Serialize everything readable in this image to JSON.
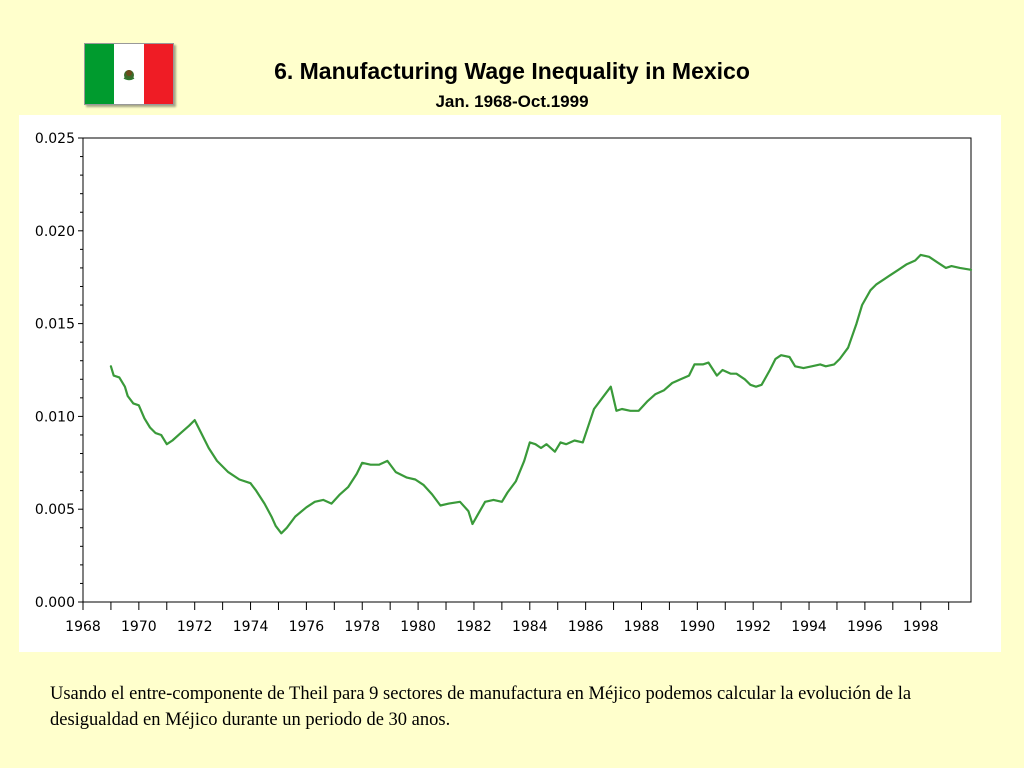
{
  "flag": {
    "name": "Mexico",
    "colors": [
      "#009b2e",
      "#ffffff",
      "#ef1c25"
    ]
  },
  "title": "6. Manufacturing Wage Inequality in Mexico",
  "subtitle": "Jan. 1968-Oct.1999",
  "caption": "Usando el entre-componente de Theil para 9 sectores de manufactura en Méjico podemos calcular la evolución de la desigualdad en Méjico durante un periodo de 30 anos.",
  "chart_data": {
    "type": "line",
    "title": "6. Manufacturing Wage Inequality in Mexico",
    "subtitle": "Jan. 1968-Oct.1999",
    "xlabel": "",
    "ylabel": "",
    "xlim": [
      1968,
      1999.8
    ],
    "ylim": [
      0,
      0.025
    ],
    "grid": false,
    "legend": "none",
    "line_color": "#3a9a3a",
    "y_ticks": [
      "0.000",
      "0.005",
      "0.010",
      "0.015",
      "0.020",
      "0.025"
    ],
    "x_ticks": [
      "1968",
      "1970",
      "1972",
      "1974",
      "1976",
      "1978",
      "1980",
      "1982",
      "1984",
      "1986",
      "1988",
      "1990",
      "1992",
      "1994",
      "1996",
      "1998"
    ],
    "series": [
      {
        "x": [
          1969.0,
          1969.1,
          1969.3,
          1969.5,
          1969.6,
          1969.8,
          1970.0,
          1970.2,
          1970.4,
          1970.6,
          1970.8,
          1971.0,
          1971.2,
          1971.5,
          1971.8,
          1972.0,
          1972.2,
          1972.5,
          1972.8,
          1973.2,
          1973.6,
          1974.0,
          1974.2,
          1974.5,
          1974.75,
          1974.9,
          1975.1,
          1975.3,
          1975.6,
          1976.0,
          1976.3,
          1976.6,
          1976.9,
          1977.2,
          1977.5,
          1977.8,
          1978.0,
          1978.3,
          1978.6,
          1978.9,
          1979.2,
          1979.6,
          1979.9,
          1980.2,
          1980.5,
          1980.8,
          1981.1,
          1981.5,
          1981.8,
          1981.95,
          1982.1,
          1982.4,
          1982.7,
          1983.0,
          1983.2,
          1983.5,
          1983.8,
          1984.0,
          1984.2,
          1984.4,
          1984.6,
          1984.9,
          1985.1,
          1985.3,
          1985.6,
          1985.9,
          1986.1,
          1986.3,
          1986.6,
          1986.9,
          1987.1,
          1987.3,
          1987.6,
          1987.9,
          1988.2,
          1988.5,
          1988.8,
          1989.1,
          1989.4,
          1989.7,
          1989.9,
          1990.2,
          1990.4,
          1990.7,
          1990.9,
          1991.2,
          1991.4,
          1991.7,
          1991.9,
          1992.1,
          1992.3,
          1992.6,
          1992.8,
          1993.0,
          1993.3,
          1993.5,
          1993.8,
          1994.1,
          1994.4,
          1994.6,
          1994.9,
          1995.1,
          1995.4,
          1995.7,
          1995.9,
          1996.2,
          1996.4,
          1996.7,
          1996.9,
          1997.2,
          1997.5,
          1997.8,
          1998.0,
          1998.3,
          1998.6,
          1998.9,
          1999.1,
          1999.4,
          1999.8
        ],
        "y": [
          0.0127,
          0.0122,
          0.0121,
          0.0116,
          0.0111,
          0.0107,
          0.0106,
          0.0099,
          0.0094,
          0.0091,
          0.009,
          0.0085,
          0.0087,
          0.0091,
          0.0095,
          0.0098,
          0.0092,
          0.0083,
          0.0076,
          0.007,
          0.0066,
          0.0064,
          0.006,
          0.0053,
          0.0046,
          0.0041,
          0.0037,
          0.004,
          0.0046,
          0.0051,
          0.0054,
          0.0055,
          0.0053,
          0.0058,
          0.0062,
          0.0069,
          0.0075,
          0.0074,
          0.0074,
          0.0076,
          0.007,
          0.0067,
          0.0066,
          0.0063,
          0.0058,
          0.0052,
          0.0053,
          0.0054,
          0.0049,
          0.0042,
          0.0046,
          0.0054,
          0.0055,
          0.0054,
          0.0059,
          0.0065,
          0.0076,
          0.0086,
          0.0085,
          0.0083,
          0.0085,
          0.0081,
          0.0086,
          0.0085,
          0.0087,
          0.0086,
          0.0095,
          0.0104,
          0.011,
          0.0116,
          0.0103,
          0.0104,
          0.0103,
          0.0103,
          0.0108,
          0.0112,
          0.0114,
          0.0118,
          0.012,
          0.0122,
          0.0128,
          0.0128,
          0.0129,
          0.0122,
          0.0125,
          0.0123,
          0.0123,
          0.012,
          0.0117,
          0.0116,
          0.0117,
          0.0125,
          0.0131,
          0.0133,
          0.0132,
          0.0127,
          0.0126,
          0.0127,
          0.0128,
          0.0127,
          0.0128,
          0.0131,
          0.0137,
          0.015,
          0.016,
          0.0168,
          0.0171,
          0.0174,
          0.0176,
          0.0179,
          0.0182,
          0.0184,
          0.0187,
          0.0186,
          0.0183,
          0.018,
          0.0181,
          0.018,
          0.0179
        ]
      }
    ]
  }
}
